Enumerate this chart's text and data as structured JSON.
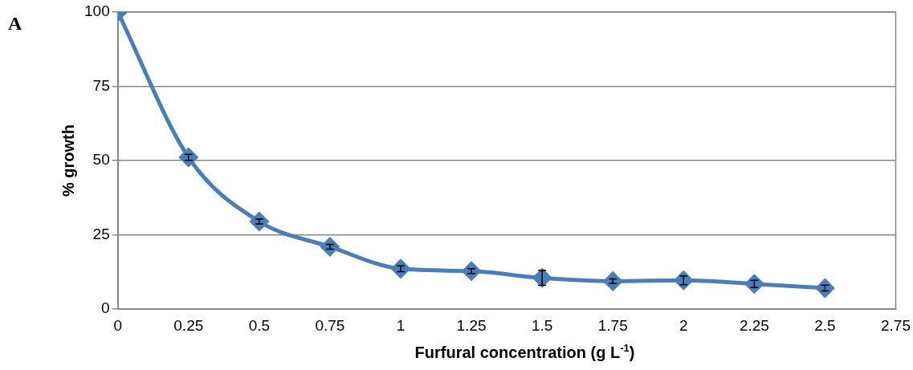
{
  "chart_data": {
    "type": "line",
    "xlabel": "Furfural concentration (g L$^{-1}$)",
    "ylabel": "% growth",
    "annotations": [
      "A"
    ],
    "series": [
      {
        "color": "#4a7ebb",
        "x": [
          0,
          0.25,
          0.5,
          0.75,
          1,
          1.25,
          1.5,
          1.75,
          2,
          2.25,
          2.5
        ],
        "values": [
          100,
          51.1,
          29.5,
          21,
          13.6,
          12.8,
          10.5,
          9.4,
          9.7,
          8.5,
          7.1
        ],
        "errors": [
          null,
          1,
          0.8,
          0.8,
          1,
          0.8,
          2.5,
          0.8,
          1.5,
          1.2,
          1
        ]
      }
    ],
    "xlim": [
      0,
      2.75
    ],
    "xticks": [
      0,
      0.25,
      0.5,
      0.75,
      1,
      1.25,
      1.5,
      1.75,
      2,
      2.25,
      2.5,
      2.75
    ],
    "ylim": [
      0,
      100
    ],
    "yticks": [
      0,
      25,
      50,
      75,
      100
    ],
    "grid": "y",
    "legend": false,
    "marker": "diamond",
    "line_style": "solid"
  }
}
